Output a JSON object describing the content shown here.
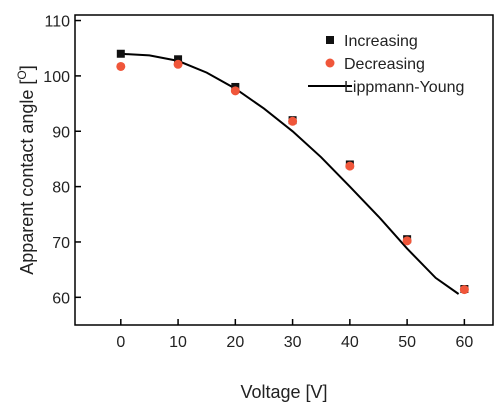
{
  "chart_data": {
    "type": "scatter",
    "xlabel": "Voltage [V]",
    "ylabel": "Apparent contact angle [",
    "ylabel_sup": "O",
    "ylabel_end": "]",
    "xlim": [
      -8,
      65
    ],
    "ylim": [
      55,
      111
    ],
    "xticks": [
      0,
      10,
      20,
      30,
      40,
      50,
      60
    ],
    "yticks": [
      60,
      70,
      80,
      90,
      100,
      110
    ],
    "grid": false,
    "legend_position": "top-right",
    "series": [
      {
        "name": "Increasing",
        "marker": "square",
        "color": "#111111",
        "x": [
          0,
          10,
          20,
          30,
          40,
          50,
          60
        ],
        "y": [
          104.0,
          103.0,
          98.0,
          92.0,
          84.0,
          70.5,
          61.5
        ]
      },
      {
        "name": "Decreasing",
        "marker": "circle",
        "color": "#f0563a",
        "x": [
          0,
          10,
          20,
          30,
          40,
          50,
          60
        ],
        "y": [
          101.7,
          102.1,
          97.3,
          91.8,
          83.7,
          70.2,
          61.4
        ]
      },
      {
        "name": "Lippmann-Young",
        "marker": "line",
        "color": "#000000",
        "x": [
          0,
          5,
          10,
          15,
          20,
          25,
          30,
          35,
          40,
          45,
          50,
          55,
          59
        ],
        "y": [
          104.0,
          103.7,
          102.7,
          100.6,
          97.7,
          94.1,
          90.0,
          85.3,
          80.0,
          74.6,
          68.8,
          63.5,
          60.6
        ]
      }
    ]
  }
}
